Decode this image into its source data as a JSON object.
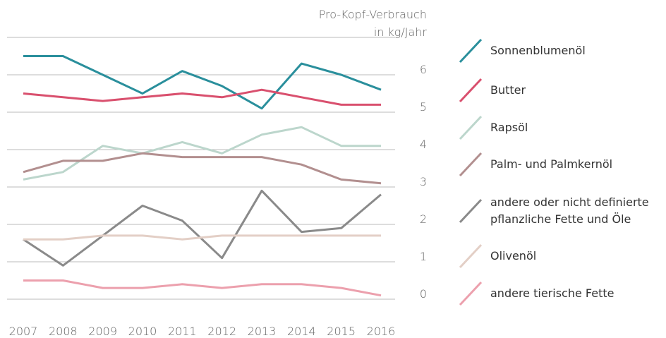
{
  "chart_data": {
    "type": "line",
    "y_label": [
      "Pro-Kopf-Verbrauch",
      "in kg/Jahr"
    ],
    "categories": [
      "2007",
      "2008",
      "2009",
      "2010",
      "2011",
      "2012",
      "2013",
      "2014",
      "2015",
      "2016"
    ],
    "series": [
      {
        "name": "Sonnenblumenöl",
        "color": "#2a8f9c",
        "values": [
          6.5,
          6.5,
          6.0,
          5.5,
          6.1,
          5.7,
          5.1,
          6.3,
          6.0,
          5.6
        ]
      },
      {
        "name": "Butter",
        "color": "#d9506e",
        "values": [
          5.5,
          5.4,
          5.3,
          5.4,
          5.5,
          5.4,
          5.6,
          5.4,
          5.2,
          5.2
        ]
      },
      {
        "name": "Rapsöl",
        "color": "#bcd6cc",
        "values": [
          3.2,
          3.4,
          4.1,
          3.9,
          4.2,
          3.9,
          4.4,
          4.6,
          4.1,
          4.1
        ]
      },
      {
        "name": "Palm- und Palmkernöl",
        "color": "#b28f8f",
        "values": [
          3.4,
          3.7,
          3.7,
          3.9,
          3.8,
          3.8,
          3.8,
          3.6,
          3.2,
          3.1
        ]
      },
      {
        "name": "andere oder nicht definierte pflanzliche Fette und Öle",
        "color": "#8a8a8a",
        "values": [
          1.6,
          0.9,
          1.7,
          2.5,
          2.1,
          1.1,
          2.9,
          1.8,
          1.9,
          2.8
        ]
      },
      {
        "name": "Olivenöl",
        "color": "#e3cfc6",
        "values": [
          1.6,
          1.6,
          1.7,
          1.7,
          1.6,
          1.7,
          1.7,
          1.7,
          1.7,
          1.7
        ]
      },
      {
        "name": "andere tierische Fette",
        "color": "#eca0ad",
        "values": [
          0.5,
          0.5,
          0.3,
          0.3,
          0.4,
          0.3,
          0.4,
          0.4,
          0.3,
          0.1
        ]
      }
    ],
    "ylim": [
      0,
      7
    ],
    "yticks": [
      0,
      1,
      2,
      3,
      4,
      5,
      6
    ],
    "grid": true,
    "legend": "right"
  }
}
